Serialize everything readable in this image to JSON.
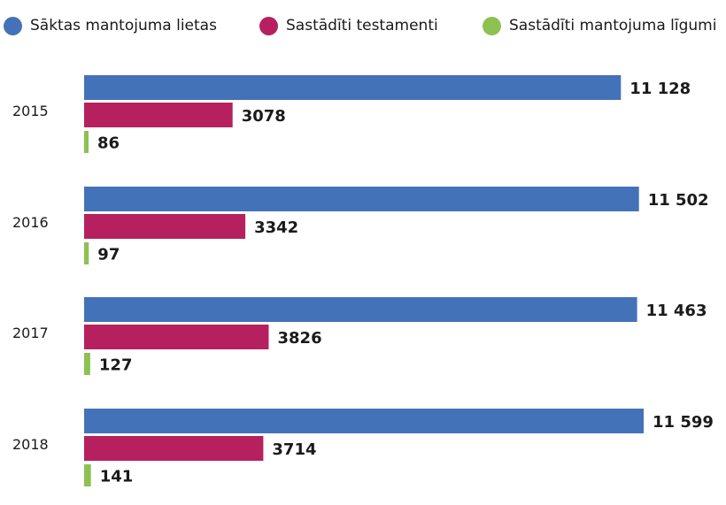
{
  "chart_data": {
    "type": "bar",
    "orientation": "horizontal",
    "categories": [
      "2015",
      "2016",
      "2017",
      "2018"
    ],
    "series": [
      {
        "name": "Sāktas mantojuma lietas",
        "color": "#4472b8",
        "values": [
          11128,
          11502,
          11463,
          11599
        ],
        "labels": [
          "11 128",
          "11 502",
          "11 463",
          "11 599"
        ]
      },
      {
        "name": "Sastādīti testamenti",
        "color": "#b7205e",
        "values": [
          3078,
          3342,
          3826,
          3714
        ],
        "labels": [
          "3078",
          "3342",
          "3826",
          "3714"
        ]
      },
      {
        "name": "Sastādīti mantojuma līgumi",
        "color": "#8dc152",
        "values": [
          86,
          97,
          127,
          141
        ],
        "labels": [
          "86",
          "97",
          "127",
          "141"
        ]
      }
    ],
    "legend": "top",
    "grid": false
  }
}
